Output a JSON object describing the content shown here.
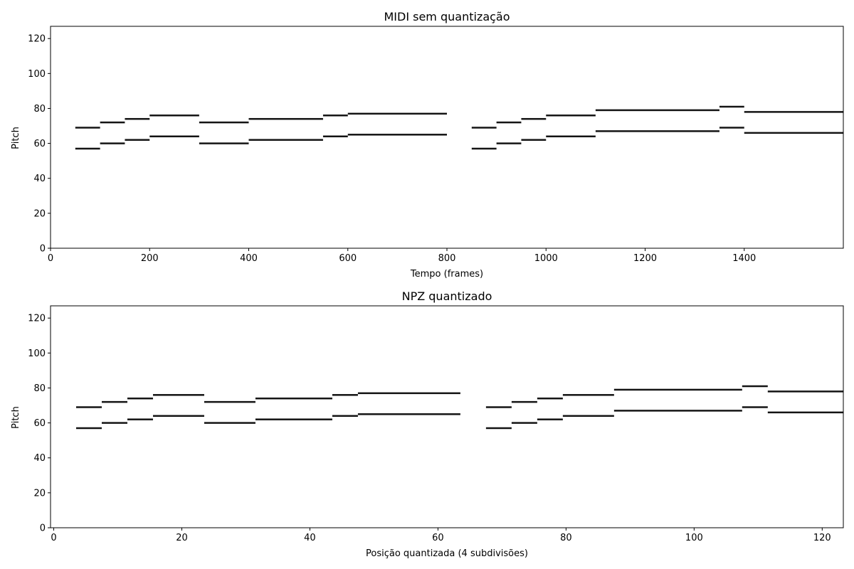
{
  "chart_data": [
    {
      "type": "heatmap",
      "title": "MIDI sem quantização",
      "xlabel": "Tempo (frames)",
      "ylabel": "Pitch",
      "xlim": [
        0,
        1600
      ],
      "ylim": [
        0,
        127
      ],
      "xticks": [
        "0",
        "200",
        "400",
        "600",
        "800",
        "1000",
        "1200",
        "1400"
      ],
      "yticks": [
        "0",
        "20",
        "40",
        "60",
        "80",
        "100",
        "120"
      ],
      "grid": false,
      "colormap": "gray_r",
      "notes": [
        {
          "start": 50,
          "end": 100,
          "pitch": 57
        },
        {
          "start": 50,
          "end": 100,
          "pitch": 69
        },
        {
          "start": 100,
          "end": 150,
          "pitch": 60
        },
        {
          "start": 100,
          "end": 150,
          "pitch": 72
        },
        {
          "start": 150,
          "end": 200,
          "pitch": 62
        },
        {
          "start": 150,
          "end": 200,
          "pitch": 74
        },
        {
          "start": 200,
          "end": 300,
          "pitch": 64
        },
        {
          "start": 200,
          "end": 300,
          "pitch": 76
        },
        {
          "start": 300,
          "end": 400,
          "pitch": 60
        },
        {
          "start": 300,
          "end": 400,
          "pitch": 72
        },
        {
          "start": 400,
          "end": 550,
          "pitch": 62
        },
        {
          "start": 400,
          "end": 550,
          "pitch": 74
        },
        {
          "start": 550,
          "end": 600,
          "pitch": 64
        },
        {
          "start": 550,
          "end": 600,
          "pitch": 76
        },
        {
          "start": 600,
          "end": 800,
          "pitch": 65
        },
        {
          "start": 600,
          "end": 800,
          "pitch": 77
        },
        {
          "start": 850,
          "end": 900,
          "pitch": 57
        },
        {
          "start": 850,
          "end": 900,
          "pitch": 69
        },
        {
          "start": 900,
          "end": 950,
          "pitch": 60
        },
        {
          "start": 900,
          "end": 950,
          "pitch": 72
        },
        {
          "start": 950,
          "end": 1000,
          "pitch": 62
        },
        {
          "start": 950,
          "end": 1000,
          "pitch": 74
        },
        {
          "start": 1000,
          "end": 1100,
          "pitch": 64
        },
        {
          "start": 1000,
          "end": 1100,
          "pitch": 76
        },
        {
          "start": 1100,
          "end": 1350,
          "pitch": 67
        },
        {
          "start": 1100,
          "end": 1350,
          "pitch": 79
        },
        {
          "start": 1350,
          "end": 1400,
          "pitch": 69
        },
        {
          "start": 1350,
          "end": 1400,
          "pitch": 81
        },
        {
          "start": 1400,
          "end": 1600,
          "pitch": 66
        },
        {
          "start": 1400,
          "end": 1600,
          "pitch": 78
        }
      ]
    },
    {
      "type": "heatmap",
      "title": "NPZ quantizado",
      "xlabel": "Posição quantizada (4 subdivisões)",
      "ylabel": "Pitch",
      "xlim": [
        -0.5,
        123.3
      ],
      "ylim": [
        0,
        127
      ],
      "xticks": [
        "0",
        "20",
        "40",
        "60",
        "80",
        "100",
        "120"
      ],
      "yticks": [
        "0",
        "20",
        "40",
        "60",
        "80",
        "100",
        "120"
      ],
      "grid": false,
      "colormap": "gray_r",
      "notes": [
        {
          "start": 3.5,
          "end": 7.5,
          "pitch": 57
        },
        {
          "start": 3.5,
          "end": 7.5,
          "pitch": 69
        },
        {
          "start": 7.5,
          "end": 11.5,
          "pitch": 60
        },
        {
          "start": 7.5,
          "end": 11.5,
          "pitch": 72
        },
        {
          "start": 11.5,
          "end": 15.5,
          "pitch": 62
        },
        {
          "start": 11.5,
          "end": 15.5,
          "pitch": 74
        },
        {
          "start": 15.5,
          "end": 23.5,
          "pitch": 64
        },
        {
          "start": 15.5,
          "end": 23.5,
          "pitch": 76
        },
        {
          "start": 23.5,
          "end": 31.5,
          "pitch": 60
        },
        {
          "start": 23.5,
          "end": 31.5,
          "pitch": 72
        },
        {
          "start": 31.5,
          "end": 43.5,
          "pitch": 62
        },
        {
          "start": 31.5,
          "end": 43.5,
          "pitch": 74
        },
        {
          "start": 43.5,
          "end": 47.5,
          "pitch": 64
        },
        {
          "start": 43.5,
          "end": 47.5,
          "pitch": 76
        },
        {
          "start": 47.5,
          "end": 63.5,
          "pitch": 65
        },
        {
          "start": 47.5,
          "end": 63.5,
          "pitch": 77
        },
        {
          "start": 67.5,
          "end": 71.5,
          "pitch": 57
        },
        {
          "start": 67.5,
          "end": 71.5,
          "pitch": 69
        },
        {
          "start": 71.5,
          "end": 75.5,
          "pitch": 60
        },
        {
          "start": 71.5,
          "end": 75.5,
          "pitch": 72
        },
        {
          "start": 75.5,
          "end": 79.5,
          "pitch": 62
        },
        {
          "start": 75.5,
          "end": 79.5,
          "pitch": 74
        },
        {
          "start": 79.5,
          "end": 87.5,
          "pitch": 64
        },
        {
          "start": 79.5,
          "end": 87.5,
          "pitch": 76
        },
        {
          "start": 87.5,
          "end": 107.5,
          "pitch": 67
        },
        {
          "start": 87.5,
          "end": 107.5,
          "pitch": 79
        },
        {
          "start": 107.5,
          "end": 111.5,
          "pitch": 69
        },
        {
          "start": 107.5,
          "end": 111.5,
          "pitch": 81
        },
        {
          "start": 111.5,
          "end": 123.3,
          "pitch": 66
        },
        {
          "start": 111.5,
          "end": 123.3,
          "pitch": 78
        }
      ]
    }
  ]
}
